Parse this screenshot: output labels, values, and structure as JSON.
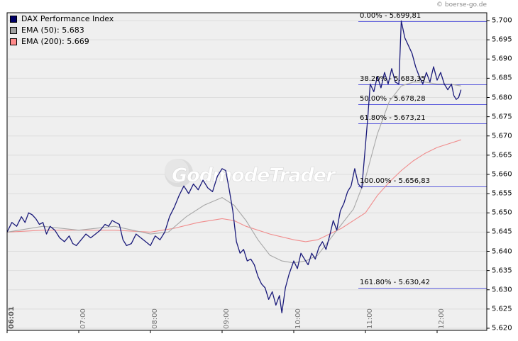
{
  "copyright": "© boerse-go.de",
  "watermark": "GodmodeTrader",
  "legend": [
    {
      "label": "DAX Performance Index",
      "color": "#000066"
    },
    {
      "label": "EMA (50): 5.683",
      "color": "#a0a0a0"
    },
    {
      "label": "EMA (200): 5.669",
      "color": "#ff8a8a"
    }
  ],
  "colors": {
    "price": "#1a1a7a",
    "ema50": "#a8a8a8",
    "ema200": "#f08c8c",
    "fib": "#5b5bdc",
    "plot_bg": "#efefef",
    "grid": "#dedede"
  },
  "chart_data": {
    "type": "line",
    "title": "DAX Performance Index",
    "xlabel": "",
    "ylabel": "",
    "ylim": [
      5.62,
      5.702
    ],
    "grid": true,
    "legend_position": "top-left",
    "x_ticks": [
      "06:01",
      "07:00",
      "08:00",
      "09:00",
      "10:00",
      "11:00",
      "12:00"
    ],
    "y_ticks": [
      "5.620",
      "5.625",
      "5.630",
      "5.635",
      "5.640",
      "5.645",
      "5.650",
      "5.655",
      "5.660",
      "5.665",
      "5.670",
      "5.675",
      "5.680",
      "5.685",
      "5.690",
      "5.695",
      "5.700"
    ],
    "series": [
      {
        "name": "DAX Performance Index",
        "x": [
          "06:01",
          "06:04",
          "06:08",
          "06:12",
          "06:15",
          "06:18",
          "06:21",
          "06:24",
          "06:27",
          "06:30",
          "06:33",
          "06:36",
          "06:40",
          "06:44",
          "06:48",
          "06:52",
          "06:55",
          "06:58",
          "07:02",
          "07:06",
          "07:10",
          "07:14",
          "07:18",
          "07:22",
          "07:25",
          "07:28",
          "07:31",
          "07:34",
          "07:37",
          "07:40",
          "07:44",
          "07:48",
          "07:52",
          "07:56",
          "08:00",
          "08:04",
          "08:08",
          "08:12",
          "08:16",
          "08:20",
          "08:24",
          "08:28",
          "08:32",
          "08:36",
          "08:40",
          "08:44",
          "08:48",
          "08:52",
          "08:56",
          "09:00",
          "09:03",
          "09:06",
          "09:09",
          "09:12",
          "09:15",
          "09:18",
          "09:21",
          "09:24",
          "09:27",
          "09:30",
          "09:33",
          "09:36",
          "09:39",
          "09:42",
          "09:45",
          "09:48",
          "09:50",
          "09:53",
          "09:56",
          "10:00",
          "10:03",
          "10:06",
          "10:09",
          "10:12",
          "10:15",
          "10:18",
          "10:21",
          "10:24",
          "10:27",
          "10:30",
          "10:33",
          "10:36",
          "10:39",
          "10:42",
          "10:45",
          "10:48",
          "10:51",
          "10:54",
          "10:57",
          "11:00",
          "11:02",
          "11:04",
          "11:07",
          "11:10",
          "11:13",
          "11:16",
          "11:19",
          "11:22",
          "11:25",
          "11:28",
          "11:30",
          "11:33",
          "11:36",
          "11:39",
          "11:42",
          "11:45",
          "11:48",
          "11:51",
          "11:54",
          "11:57",
          "12:00",
          "12:03",
          "12:06",
          "12:09",
          "12:12",
          "12:14",
          "12:16",
          "12:18",
          "12:20"
        ],
        "values": [
          5.645,
          5.6475,
          5.6465,
          5.649,
          5.6475,
          5.65,
          5.6495,
          5.6485,
          5.647,
          5.6475,
          5.6445,
          5.6465,
          5.6455,
          5.6435,
          5.6425,
          5.644,
          5.642,
          5.6415,
          5.643,
          5.6445,
          5.6435,
          5.6445,
          5.6455,
          5.647,
          5.6465,
          5.648,
          5.6475,
          5.647,
          5.643,
          5.6415,
          5.642,
          5.6445,
          5.6435,
          5.6425,
          5.6415,
          5.644,
          5.643,
          5.645,
          5.649,
          5.6515,
          5.6545,
          5.657,
          5.655,
          5.6575,
          5.656,
          5.6585,
          5.6565,
          5.6555,
          5.6595,
          5.6615,
          5.661,
          5.656,
          5.6505,
          5.6425,
          5.6395,
          5.6405,
          5.6375,
          5.638,
          5.6365,
          5.6335,
          5.6315,
          5.6305,
          5.6275,
          5.6295,
          5.626,
          5.6285,
          5.624,
          5.6305,
          5.634,
          5.6375,
          5.6355,
          5.6395,
          5.638,
          5.6365,
          5.6395,
          5.638,
          5.641,
          5.6425,
          5.6405,
          5.644,
          5.648,
          5.6455,
          5.6505,
          5.6525,
          5.6555,
          5.657,
          5.6615,
          5.6575,
          5.6565,
          5.6675,
          5.675,
          5.6835,
          5.6815,
          5.6855,
          5.6825,
          5.6865,
          5.6835,
          5.6875,
          5.684,
          5.6835,
          5.6999,
          5.6955,
          5.6935,
          5.6915,
          5.688,
          5.6855,
          5.6835,
          5.6865,
          5.684,
          5.688,
          5.6845,
          5.6865,
          5.6835,
          5.682,
          5.6835,
          5.6805,
          5.6795,
          5.68,
          5.682
        ]
      },
      {
        "name": "EMA (50)",
        "x": [
          "06:01",
          "06:30",
          "07:00",
          "07:30",
          "08:00",
          "08:15",
          "08:30",
          "08:45",
          "09:00",
          "09:10",
          "09:20",
          "09:30",
          "09:40",
          "09:50",
          "10:00",
          "10:10",
          "10:20",
          "10:30",
          "10:40",
          "10:50",
          "11:00",
          "11:10",
          "11:20",
          "11:30",
          "11:40",
          "11:50",
          "12:00",
          "12:10",
          "12:20"
        ],
        "values": [
          5.645,
          5.6465,
          5.6455,
          5.6465,
          5.6445,
          5.645,
          5.649,
          5.652,
          5.654,
          5.652,
          5.648,
          5.643,
          5.639,
          5.6375,
          5.637,
          5.6375,
          5.639,
          5.643,
          5.647,
          5.651,
          5.659,
          5.6705,
          5.679,
          5.683,
          5.684,
          5.684,
          5.6835,
          5.6835,
          5.683
        ]
      },
      {
        "name": "EMA (200)",
        "x": [
          "06:01",
          "06:30",
          "07:00",
          "07:30",
          "08:00",
          "08:20",
          "08:40",
          "09:00",
          "09:10",
          "09:20",
          "09:40",
          "10:00",
          "10:10",
          "10:20",
          "10:30",
          "10:40",
          "10:50",
          "11:00",
          "11:10",
          "11:20",
          "11:30",
          "11:40",
          "11:50",
          "12:00",
          "12:10",
          "12:20"
        ],
        "values": [
          5.645,
          5.6455,
          5.6455,
          5.6455,
          5.645,
          5.646,
          5.6475,
          5.6485,
          5.648,
          5.6465,
          5.6445,
          5.643,
          5.6425,
          5.643,
          5.6445,
          5.646,
          5.648,
          5.65,
          5.6545,
          5.658,
          5.661,
          5.6635,
          5.6655,
          5.667,
          5.668,
          5.669
        ]
      }
    ],
    "fibonacci_levels": [
      {
        "label": "0.00% - 5.699,81",
        "value": 5.69981
      },
      {
        "label": "38.20% - 5.683,35",
        "value": 5.68335
      },
      {
        "label": "50.00% - 5.678,28",
        "value": 5.67828
      },
      {
        "label": "61.80% - 5.673,21",
        "value": 5.67321
      },
      {
        "label": "100.00% - 5.656,83",
        "value": 5.65683
      },
      {
        "label": "161.80% - 5.630,42",
        "value": 5.63042
      }
    ]
  }
}
